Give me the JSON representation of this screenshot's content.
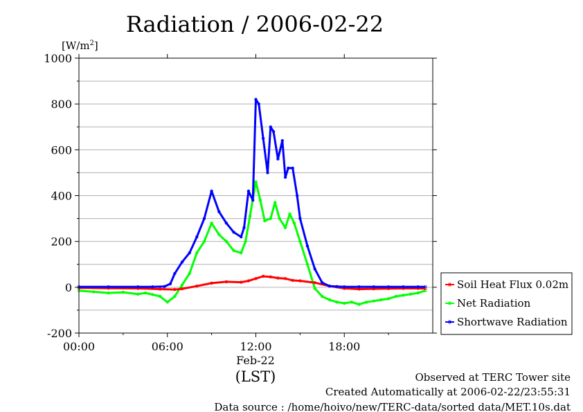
{
  "chart_data": {
    "type": "line",
    "title": "Radiation / 2006-02-22",
    "ylabel": "[W/m",
    "ylabel_sup": "2",
    "ylabel_close": "]",
    "xlabel": "(LST)",
    "date_label": "Feb-22",
    "xlim": [
      0,
      24
    ],
    "ylim": [
      -200,
      1000
    ],
    "grid": true,
    "legend_position": "right",
    "y_ticks": [
      {
        "value": -200,
        "label": "-200"
      },
      {
        "value": 0,
        "label": "0"
      },
      {
        "value": 200,
        "label": "200"
      },
      {
        "value": 400,
        "label": "400"
      },
      {
        "value": 600,
        "label": "600"
      },
      {
        "value": 800,
        "label": "800"
      },
      {
        "value": 1000,
        "label": "1000"
      }
    ],
    "x_ticks": [
      {
        "value": 0,
        "label": "00:00"
      },
      {
        "value": 6,
        "label": "06:00"
      },
      {
        "value": 12,
        "label": "12:00"
      },
      {
        "value": 18,
        "label": "18:00"
      }
    ],
    "series": [
      {
        "name": "Soil Heat Flux 0.02m",
        "color": "#ff0000",
        "x": [
          0,
          2,
          4,
          5.5,
          6.5,
          7,
          8,
          9,
          10,
          11,
          11.5,
          12,
          12.5,
          13,
          13.5,
          14,
          14.5,
          15,
          16,
          17,
          18,
          19,
          20,
          21,
          22,
          23,
          23.5
        ],
        "y": [
          -3,
          -4,
          -5,
          -8,
          -10,
          -7,
          5,
          18,
          24,
          22,
          28,
          38,
          48,
          45,
          40,
          38,
          30,
          28,
          20,
          5,
          -5,
          -8,
          -7,
          -6,
          -5,
          -5,
          -6
        ]
      },
      {
        "name": "Net Radiation",
        "color": "#00ff00",
        "x": [
          0,
          1,
          2,
          3,
          4,
          4.5,
          5,
          5.5,
          6,
          6.5,
          7,
          7.5,
          8,
          8.5,
          9,
          9.5,
          10,
          10.5,
          11,
          11.3,
          11.6,
          12,
          12.3,
          12.6,
          13,
          13.3,
          13.6,
          14,
          14.3,
          14.6,
          15,
          15.5,
          16,
          16.5,
          17,
          17.5,
          18,
          18.5,
          19,
          19.5,
          20,
          20.5,
          21,
          21.5,
          22,
          22.5,
          23,
          23.5
        ],
        "y": [
          -15,
          -20,
          -25,
          -22,
          -30,
          -25,
          -32,
          -40,
          -65,
          -40,
          10,
          60,
          150,
          200,
          280,
          230,
          200,
          160,
          150,
          200,
          310,
          460,
          380,
          290,
          300,
          370,
          300,
          260,
          320,
          280,
          200,
          100,
          -5,
          -40,
          -55,
          -65,
          -70,
          -65,
          -75,
          -65,
          -60,
          -55,
          -50,
          -40,
          -35,
          -30,
          -25,
          -15
        ]
      },
      {
        "name": "Shortwave Radiation",
        "color": "#0000ff",
        "x": [
          0,
          2,
          4,
          5,
          5.8,
          6.2,
          6.5,
          7,
          7.5,
          8,
          8.5,
          9,
          9.5,
          10,
          10.5,
          11,
          11.2,
          11.5,
          11.8,
          12,
          12.2,
          12.5,
          12.8,
          13,
          13.2,
          13.5,
          13.8,
          14,
          14.2,
          14.5,
          14.8,
          15,
          15.5,
          16,
          16.5,
          17,
          17.5,
          18,
          19,
          20,
          21,
          22,
          23,
          23.5
        ],
        "y": [
          2,
          2,
          2,
          2,
          3,
          15,
          60,
          110,
          150,
          220,
          300,
          420,
          330,
          280,
          240,
          220,
          260,
          420,
          380,
          820,
          800,
          650,
          500,
          700,
          680,
          560,
          640,
          480,
          520,
          520,
          400,
          300,
          180,
          80,
          20,
          5,
          3,
          2,
          2,
          2,
          2,
          2,
          2,
          2
        ]
      }
    ]
  },
  "footer": {
    "site": "Observed at TERC Tower site",
    "created": "Created Automatically at 2006-02-22/23:55:31",
    "source": "Data source : /home/hoivo/new/TERC-data/sorted  data/MET.10s.dat"
  }
}
